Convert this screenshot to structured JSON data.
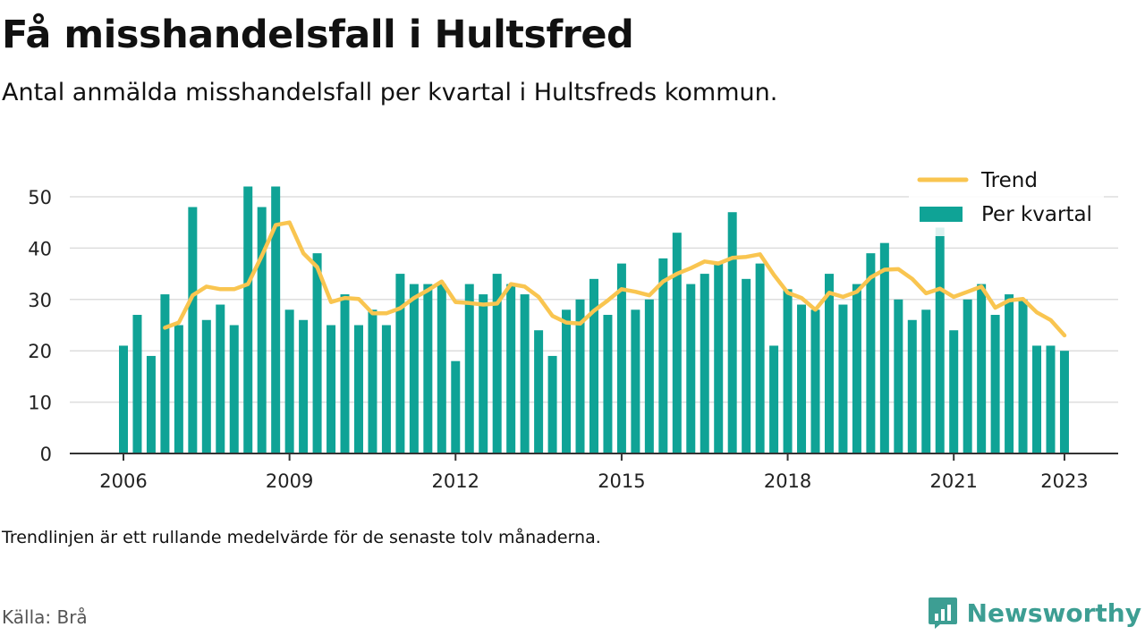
{
  "header": {
    "title": "Få misshandelsfall i Hultsfred",
    "subtitle": "Antal anmälda misshandelsfall per kvartal i Hultsfreds kommun."
  },
  "footer": {
    "note": "Trendlinjen är ett rullande medelvärde för de senaste tolv månaderna.",
    "source": "Källa: Brå",
    "brand": "Newsworthy"
  },
  "colors": {
    "bars": "#0fa396",
    "trend": "#f9c550",
    "grid": "#dddddd",
    "brand": "#3d9e93"
  },
  "chart_data": {
    "type": "bar",
    "start": "2006 Q1",
    "xticks": [
      "2006",
      "2009",
      "2012",
      "2015",
      "2018",
      "2021",
      "2023"
    ],
    "yticks": [
      0,
      10,
      20,
      30,
      40,
      50
    ],
    "ylim": [
      0,
      55
    ],
    "legend_placement": "top-right",
    "grid": true,
    "series": [
      {
        "name": "Per kvartal",
        "values": [
          21,
          27,
          19,
          31,
          25,
          48,
          26,
          29,
          25,
          52,
          48,
          52,
          28,
          26,
          39,
          25,
          31,
          25,
          28,
          25,
          35,
          33,
          33,
          33,
          18,
          33,
          31,
          35,
          33,
          31,
          24,
          19,
          28,
          30,
          34,
          27,
          37,
          28,
          30,
          38,
          43,
          33,
          35,
          37,
          47,
          34,
          37,
          21,
          32,
          29,
          28,
          35,
          29,
          33,
          39,
          41,
          30,
          26,
          28,
          44,
          24,
          30,
          33,
          27,
          31,
          30,
          21,
          21,
          20
        ]
      },
      {
        "name": "Trend",
        "values": [
          null,
          null,
          null,
          24.5,
          25.5,
          30.8,
          32.5,
          32,
          32,
          33,
          38.5,
          44.5,
          45,
          39,
          36.3,
          29.5,
          30.3,
          30.1,
          27.3,
          27.3,
          28.3,
          30.3,
          31.8,
          33.5,
          29.5,
          29.3,
          29,
          29.2,
          33,
          32.5,
          30.5,
          26.8,
          25.5,
          25.3,
          27.8,
          29.8,
          32,
          31.5,
          30.8,
          33.5,
          35,
          36.1,
          37.4,
          37,
          38.1,
          38.3,
          38.8,
          34.8,
          31.3,
          30.3,
          28,
          31.3,
          30.5,
          31.5,
          34.3,
          35.8,
          35.9,
          34,
          31.2,
          32.1,
          30.5,
          31.5,
          32.5,
          28.4,
          29.8,
          30.1,
          27.5,
          26,
          23
        ]
      }
    ]
  }
}
